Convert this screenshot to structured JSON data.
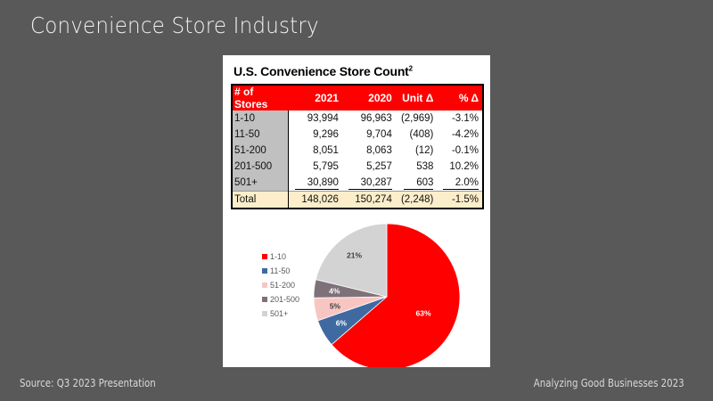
{
  "slide": {
    "title": "Convenience Store Industry",
    "footer_left": "Source: Q3 2023 Presentation",
    "footer_right": "Analyzing Good Businesses 2023"
  },
  "panel": {
    "title": "U.S. Convenience Store Count",
    "title_superscript": "2"
  },
  "table": {
    "headers": [
      "# of Stores",
      "2021",
      "2020",
      "Unit Δ",
      "% Δ"
    ],
    "rows": [
      {
        "label": "1-10",
        "y2021": "93,994",
        "y2020": "96,963",
        "unit": "(2,969)",
        "pct": "-3.1%"
      },
      {
        "label": "11-50",
        "y2021": "9,296",
        "y2020": "9,704",
        "unit": "(408)",
        "pct": "-4.2%"
      },
      {
        "label": "51-200",
        "y2021": "8,051",
        "y2020": "8,063",
        "unit": "(12)",
        "pct": "-0.1%"
      },
      {
        "label": "201-500",
        "y2021": "5,795",
        "y2020": "5,257",
        "unit": "538",
        "pct": "10.2%"
      },
      {
        "label": "501+",
        "y2021": "30,890",
        "y2020": "30,287",
        "unit": "603",
        "pct": "2.0%"
      }
    ],
    "total": {
      "label": "Total",
      "y2021": "148,026",
      "y2020": "150,274",
      "unit": "(2,248)",
      "pct": "-1.5%"
    }
  },
  "colors": {
    "header": "#ff0000",
    "label_col": "#c0c0c0",
    "total_row": "#fdeecb",
    "background": "#595959"
  },
  "chart_data": {
    "type": "pie",
    "title": "",
    "categories": [
      "1-10",
      "11-50",
      "51-200",
      "201-500",
      "501+"
    ],
    "values": [
      63,
      6,
      5,
      4,
      21
    ],
    "labels": [
      "63%",
      "6%",
      "5%",
      "4%",
      "21%"
    ],
    "colors": [
      "#ff0000",
      "#3f6aa1",
      "#f8c6c2",
      "#7f7179",
      "#d3d3d3"
    ],
    "legend_position": "left"
  }
}
